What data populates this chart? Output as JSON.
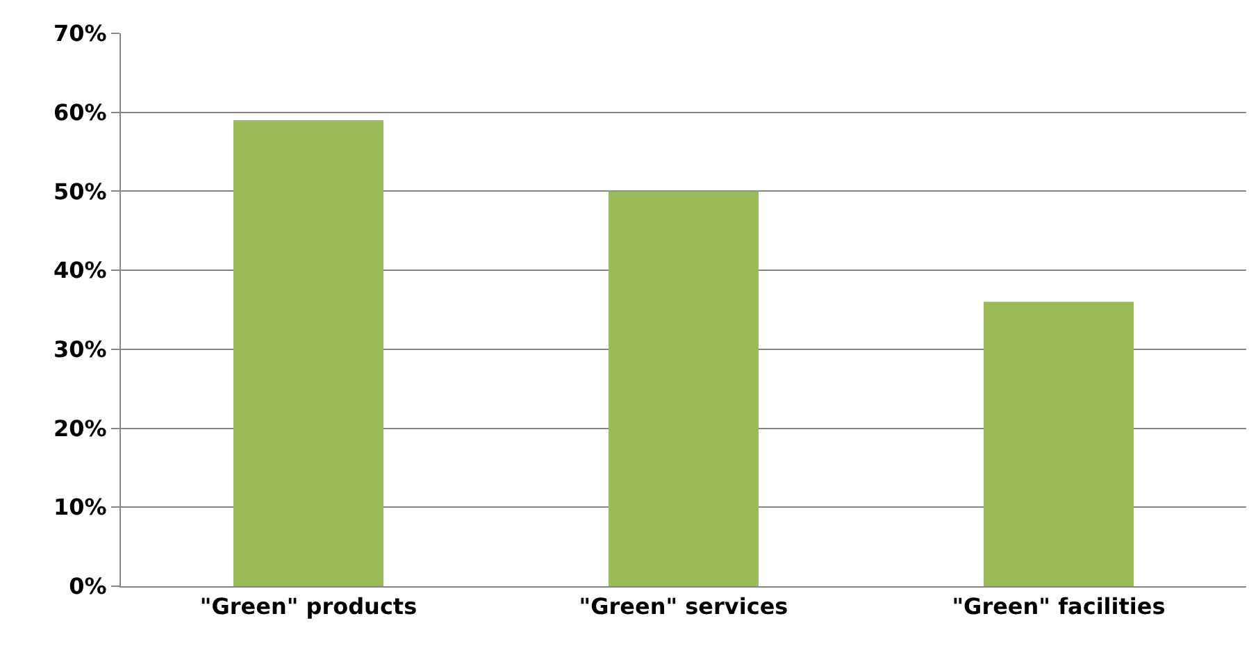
{
  "chart_data": {
    "type": "bar",
    "categories": [
      "\"Green\" products",
      "\"Green\" services",
      "\"Green\" facilities"
    ],
    "values": [
      59,
      50,
      36
    ],
    "color": "#9bbb59",
    "ylim": [
      0,
      70
    ],
    "yticks": [
      {
        "value": 0,
        "label": "0%"
      },
      {
        "value": 10,
        "label": "10%"
      },
      {
        "value": 20,
        "label": "20%"
      },
      {
        "value": 30,
        "label": "30%"
      },
      {
        "value": 40,
        "label": "40%"
      },
      {
        "value": 50,
        "label": "50%"
      },
      {
        "value": 60,
        "label": "60%"
      },
      {
        "value": 70,
        "label": "70%"
      }
    ],
    "grid": "y",
    "legend": false
  }
}
